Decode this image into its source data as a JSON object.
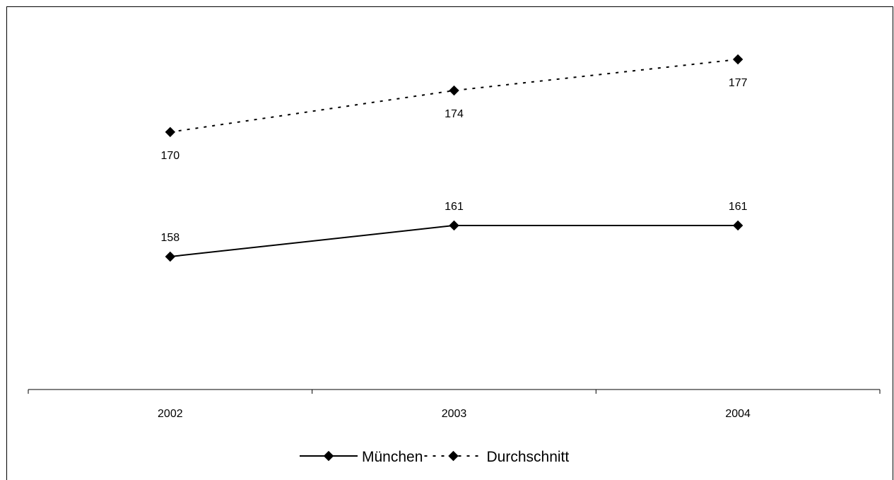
{
  "chart_data": {
    "type": "line",
    "categories": [
      "2002",
      "2003",
      "2004"
    ],
    "series": [
      {
        "name": "München",
        "values": [
          158,
          161,
          161
        ],
        "line_style": "solid",
        "marker": "diamond",
        "color": "#000000"
      },
      {
        "name": "Durchschnitt",
        "values": [
          170,
          174,
          177
        ],
        "line_style": "dashed",
        "marker": "diamond",
        "color": "#000000"
      }
    ],
    "data_labels": true,
    "y_axis_visible": false,
    "grid": false,
    "legend_position": "bottom"
  }
}
